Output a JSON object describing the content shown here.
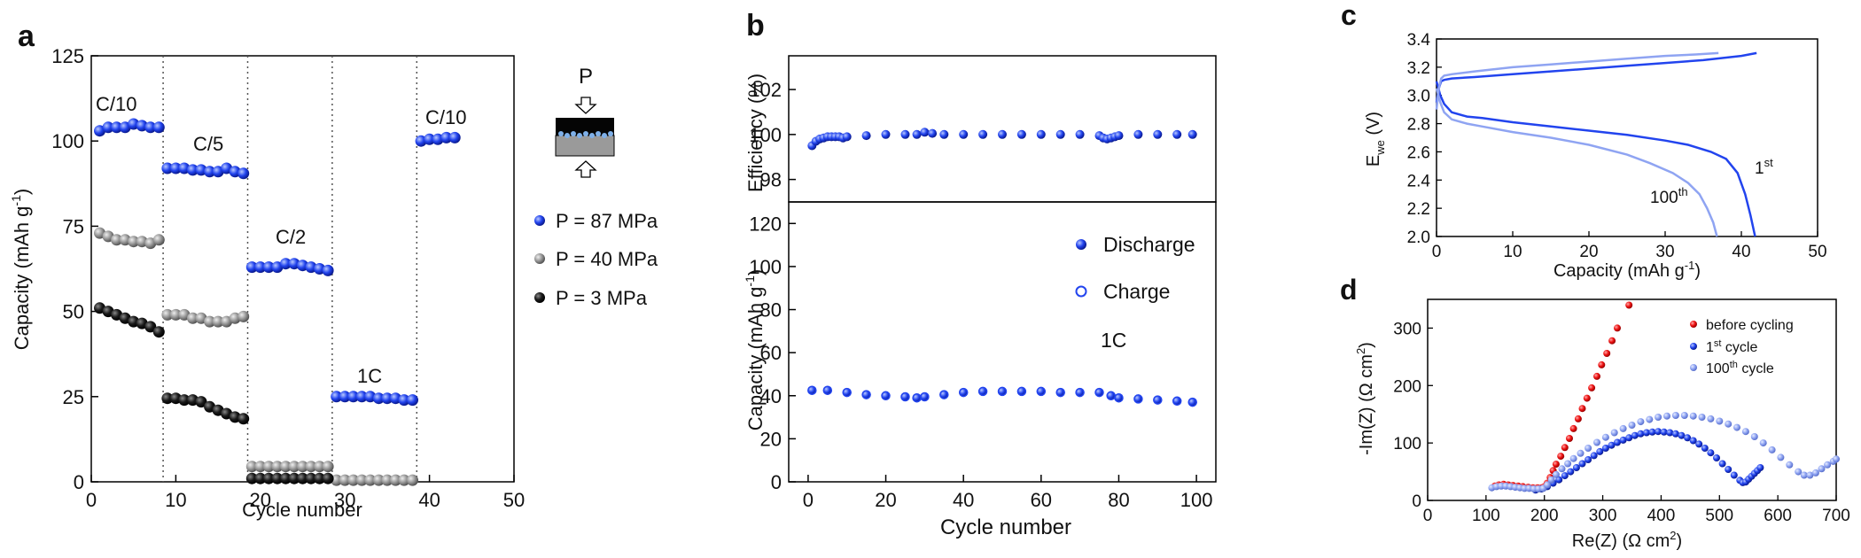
{
  "panels": {
    "a": {
      "letter": "a",
      "xlabel": "Cycle number",
      "ylabel": "Capacity (mAh g",
      "ylabel_sup": "-1",
      "ylabel_close": ")",
      "xlim": [
        0,
        50
      ],
      "ylim": [
        0,
        125
      ],
      "xticks": [
        "0",
        "10",
        "20",
        "30",
        "40",
        "50"
      ],
      "yticks": [
        "0",
        "25",
        "50",
        "75",
        "100",
        "125"
      ],
      "rate_labels": [
        "C/10",
        "C/5",
        "C/2",
        "1C",
        "C/10"
      ],
      "dividers": [
        8.5,
        18.5,
        28.5,
        38.5
      ],
      "inset_label": "P",
      "legend": [
        "P = 87 MPa",
        "P = 40 MPa",
        "P = 3 MPa"
      ]
    },
    "b": {
      "letter": "b",
      "top_ylabel": "Efficiency (%)",
      "top_ylim": [
        97,
        103.5
      ],
      "top_yticks": [
        "98",
        "100",
        "102"
      ],
      "bottom_ylabel": "Capacity (mAh g",
      "bottom_ylabel_sup": "-1",
      "bottom_ylabel_close": ")",
      "bottom_ylim": [
        0,
        130
      ],
      "bottom_yticks": [
        "0",
        "20",
        "40",
        "60",
        "80",
        "100",
        "120"
      ],
      "xlabel": "Cycle number",
      "xlim": [
        -5,
        105
      ],
      "xticks": [
        "0",
        "20",
        "40",
        "60",
        "80",
        "100"
      ],
      "legend": [
        "Discharge",
        "Charge"
      ],
      "rate_label": "1C"
    },
    "c": {
      "letter": "c",
      "ylabel_main": "E",
      "ylabel_sub": "we",
      "ylabel_unit": " (V)",
      "xlabel": "Capacity (mAh g",
      "xlabel_sup": "-1",
      "xlabel_close": ")",
      "xlim": [
        0,
        50
      ],
      "ylim": [
        2.0,
        3.4
      ],
      "xticks": [
        "0",
        "10",
        "20",
        "30",
        "40",
        "50"
      ],
      "yticks": [
        "2.0",
        "2.2",
        "2.4",
        "2.6",
        "2.8",
        "3.0",
        "3.2",
        "3.4"
      ],
      "label_1": "1",
      "label_1_sup": "st",
      "label_100": "100",
      "label_100_sup": "th"
    },
    "d": {
      "letter": "d",
      "xlabel": "Re(Z) (Ω cm",
      "xlabel_sup": "2",
      "xlabel_close": ")",
      "ylabel": "-Im(Z) (Ω cm",
      "ylabel_sup": "2",
      "ylabel_close": ")",
      "xlim": [
        0,
        700
      ],
      "ylim": [
        0,
        350
      ],
      "xticks": [
        "0",
        "100",
        "200",
        "300",
        "400",
        "500",
        "600",
        "700"
      ],
      "yticks": [
        "0",
        "100",
        "200",
        "300"
      ],
      "legend": [
        {
          "text": "before cycling",
          "sup": "",
          "rest": ""
        },
        {
          "text": "1",
          "sup": "st",
          "rest": " cycle"
        },
        {
          "text": "100",
          "sup": "th",
          "rest": " cycle"
        }
      ]
    }
  },
  "colors": {
    "blue": "#2244ee",
    "light_blue": "#8fa4f2",
    "gray": "#999999",
    "black": "#1a1a1a",
    "red": "#ee1111"
  },
  "chart_data": [
    {
      "type": "scatter",
      "panel": "a",
      "xlabel": "Cycle number",
      "ylabel": "Capacity (mAh g-1)",
      "xlim": [
        0,
        50
      ],
      "ylim": [
        0,
        125
      ],
      "series": [
        {
          "name": "P = 87 MPa",
          "color": "blue",
          "x": [
            1,
            2,
            3,
            4,
            5,
            6,
            7,
            8,
            9,
            10,
            11,
            12,
            13,
            14,
            15,
            16,
            17,
            18,
            19,
            20,
            21,
            22,
            23,
            24,
            25,
            26,
            27,
            28,
            29,
            30,
            31,
            32,
            33,
            34,
            35,
            36,
            37,
            38,
            39,
            40,
            41,
            42,
            43
          ],
          "y": [
            103,
            104,
            104,
            104,
            105,
            104.5,
            104,
            104,
            92,
            92,
            92,
            91.5,
            91.5,
            91,
            91,
            92,
            91,
            90.5,
            63,
            63,
            63,
            63,
            64,
            64,
            63.5,
            63,
            62.5,
            62,
            25,
            25,
            25,
            25,
            25,
            24.5,
            24.5,
            24.5,
            24,
            24,
            100,
            100.5,
            100.5,
            101,
            101
          ]
        },
        {
          "name": "P = 40 MPa",
          "color": "gray",
          "x": [
            1,
            2,
            3,
            4,
            5,
            6,
            7,
            8,
            9,
            10,
            11,
            12,
            13,
            14,
            15,
            16,
            17,
            18,
            19,
            20,
            21,
            22,
            23,
            24,
            25,
            26,
            27,
            28,
            29,
            30,
            31,
            32,
            33,
            34,
            35,
            36,
            37,
            38
          ],
          "y": [
            73,
            72,
            71,
            71,
            70.5,
            70.5,
            70,
            71,
            49,
            49,
            49,
            48,
            48,
            47,
            47,
            47,
            48,
            48.5,
            4.5,
            4.5,
            4.5,
            4.5,
            4.5,
            4.5,
            4.5,
            4.5,
            4.5,
            4.5,
            0.5,
            0.5,
            0.5,
            0.5,
            0.5,
            0.5,
            0.5,
            0.5,
            0.5,
            0.5
          ]
        },
        {
          "name": "P = 3 MPa",
          "color": "black",
          "x": [
            1,
            2,
            3,
            4,
            5,
            6,
            7,
            8,
            9,
            10,
            11,
            12,
            13,
            14,
            15,
            16,
            17,
            18,
            19,
            20,
            21,
            22,
            23,
            24,
            25,
            26,
            27,
            28
          ],
          "y": [
            51,
            50,
            49,
            48,
            47,
            46.5,
            45.5,
            44,
            24.5,
            24.5,
            24,
            24,
            23.5,
            22,
            21,
            20,
            19,
            18.5,
            1,
            1,
            1,
            1,
            1,
            1,
            1,
            1,
            1,
            1
          ]
        }
      ]
    },
    {
      "type": "scatter",
      "panel": "b-top",
      "ylabel": "Efficiency (%)",
      "ylim": [
        97,
        103.5
      ],
      "series": [
        {
          "name": "",
          "color": "blue",
          "x": [
            1,
            2,
            3,
            4,
            5,
            6,
            7,
            8,
            9,
            10,
            15,
            20,
            25,
            28,
            30,
            32,
            35,
            40,
            45,
            50,
            55,
            60,
            65,
            70,
            75,
            76,
            77,
            78,
            79,
            80,
            85,
            90,
            95,
            99
          ],
          "y": [
            99.5,
            99.7,
            99.8,
            99.85,
            99.9,
            99.9,
            99.9,
            99.9,
            99.85,
            99.9,
            99.95,
            100,
            100,
            100,
            100.1,
            100.05,
            100,
            100,
            100,
            100,
            100,
            100,
            100,
            100,
            99.95,
            99.85,
            99.8,
            99.85,
            99.9,
            99.95,
            100,
            100,
            100,
            100
          ]
        }
      ]
    },
    {
      "type": "scatter",
      "panel": "b-bottom",
      "xlabel": "Cycle number",
      "ylabel": "Capacity (mAh g-1)",
      "ylim": [
        0,
        130
      ],
      "series": [
        {
          "name": "Discharge",
          "color": "blue",
          "x": [
            1,
            5,
            10,
            15,
            20,
            25,
            28,
            30,
            35,
            40,
            45,
            50,
            55,
            60,
            65,
            70,
            75,
            78,
            80,
            85,
            90,
            95,
            99
          ],
          "y": [
            42.5,
            42.5,
            41.5,
            40.5,
            40,
            39.5,
            39,
            39.5,
            40.5,
            41.5,
            42,
            42,
            42,
            42,
            41.5,
            41.5,
            41.5,
            40,
            39,
            38.5,
            38,
            37.5,
            37
          ]
        },
        {
          "name": "Charge",
          "color": "blue",
          "x": [
            1,
            5,
            10,
            15,
            20,
            25,
            28,
            30,
            35,
            40,
            45,
            50,
            55,
            60,
            65,
            70,
            75,
            78,
            80,
            85,
            90,
            95,
            99
          ],
          "y": [
            42.5,
            42.5,
            41.5,
            40.5,
            40,
            39.5,
            39,
            39.5,
            40.5,
            41.5,
            42,
            42,
            42,
            42,
            41.5,
            41.5,
            41.5,
            40,
            39,
            38.5,
            38,
            37.5,
            37
          ]
        }
      ]
    },
    {
      "type": "line",
      "panel": "c",
      "xlabel": "Capacity (mAh g-1)",
      "ylabel": "Ewe (V)",
      "xlim": [
        0,
        50
      ],
      "ylim": [
        2.0,
        3.4
      ],
      "series": [
        {
          "name": "1st discharge",
          "color": "blue",
          "x": [
            0,
            0.5,
            1,
            2,
            4,
            6,
            10,
            15,
            20,
            25,
            30,
            33,
            36,
            38,
            39.5,
            40.5,
            41.2,
            41.8
          ],
          "y": [
            3.1,
            3.0,
            2.94,
            2.88,
            2.85,
            2.84,
            2.81,
            2.78,
            2.75,
            2.72,
            2.68,
            2.65,
            2.6,
            2.55,
            2.45,
            2.3,
            2.15,
            2.0
          ]
        },
        {
          "name": "1st charge",
          "color": "blue",
          "x": [
            0,
            0.3,
            0.6,
            1,
            2,
            5,
            10,
            15,
            20,
            25,
            30,
            35,
            40,
            42
          ],
          "y": [
            2.95,
            3.05,
            3.1,
            3.11,
            3.12,
            3.13,
            3.15,
            3.17,
            3.19,
            3.21,
            3.23,
            3.25,
            3.28,
            3.3
          ]
        },
        {
          "name": "100th discharge",
          "color": "light_blue",
          "x": [
            0,
            0.5,
            1,
            2,
            4,
            6,
            10,
            15,
            20,
            25,
            28,
            31,
            33,
            34.5,
            35.5,
            36.3,
            36.8
          ],
          "y": [
            3.05,
            2.95,
            2.88,
            2.83,
            2.8,
            2.78,
            2.74,
            2.7,
            2.65,
            2.58,
            2.52,
            2.45,
            2.38,
            2.3,
            2.2,
            2.1,
            2.0
          ]
        },
        {
          "name": "100th charge",
          "color": "light_blue",
          "x": [
            0,
            0.3,
            0.6,
            1,
            2,
            5,
            10,
            15,
            20,
            25,
            30,
            34,
            37
          ],
          "y": [
            2.9,
            3.05,
            3.12,
            3.14,
            3.15,
            3.17,
            3.2,
            3.22,
            3.24,
            3.26,
            3.28,
            3.29,
            3.3
          ]
        }
      ]
    },
    {
      "type": "scatter",
      "panel": "d",
      "xlabel": "Re(Z) (Ω cm2)",
      "ylabel": "-Im(Z) (Ω cm2)",
      "xlim": [
        0,
        700
      ],
      "ylim": [
        0,
        350
      ],
      "series": [
        {
          "name": "before cycling",
          "color": "red",
          "x": [
            115,
            122,
            130,
            138,
            146,
            155,
            163,
            172,
            180,
            188,
            195,
            200,
            205,
            210,
            215,
            220,
            228,
            235,
            243,
            250,
            258,
            265,
            273,
            281,
            290,
            298,
            307,
            316,
            325,
            345
          ],
          "y": [
            25,
            27,
            28,
            27,
            26,
            25,
            24,
            23,
            22,
            22,
            22,
            24,
            30,
            40,
            52,
            63,
            77,
            92,
            108,
            125,
            142,
            160,
            178,
            196,
            216,
            236,
            256,
            278,
            300,
            340
          ]
        },
        {
          "name": "1st cycle",
          "color": "blue",
          "x": [
            185,
            195,
            205,
            215,
            225,
            235,
            245,
            255,
            265,
            275,
            285,
            295,
            305,
            315,
            325,
            335,
            345,
            355,
            365,
            375,
            385,
            395,
            405,
            415,
            425,
            435,
            445,
            455,
            465,
            475,
            485,
            495,
            505,
            515,
            525,
            535,
            540,
            545,
            550,
            555,
            560,
            565,
            570
          ],
          "y": [
            18,
            20,
            24,
            30,
            36,
            43,
            50,
            57,
            64,
            71,
            78,
            85,
            91,
            96,
            101,
            105,
            109,
            113,
            116,
            118,
            119,
            120,
            119,
            118,
            116,
            113,
            109,
            104,
            98,
            91,
            83,
            74,
            64,
            54,
            44,
            35,
            31,
            32,
            37,
            42,
            47,
            52,
            57
          ]
        },
        {
          "name": "100th cycle",
          "color": "light_blue",
          "x": [
            110,
            118,
            126,
            134,
            142,
            150,
            158,
            166,
            174,
            182,
            190,
            198,
            205,
            212,
            220,
            230,
            240,
            250,
            262,
            275,
            290,
            305,
            320,
            335,
            350,
            365,
            380,
            395,
            410,
            425,
            440,
            455,
            470,
            485,
            500,
            515,
            530,
            545,
            560,
            575,
            590,
            605,
            620,
            635,
            645,
            655,
            665,
            675,
            685,
            695,
            700
          ],
          "y": [
            22,
            24,
            25,
            25,
            24,
            23,
            22,
            21,
            21,
            20,
            20,
            21,
            27,
            36,
            45,
            55,
            64,
            73,
            82,
            91,
            101,
            110,
            118,
            125,
            131,
            137,
            141,
            145,
            147,
            148,
            148,
            147,
            145,
            142,
            138,
            133,
            127,
            120,
            111,
            100,
            88,
            75,
            62,
            50,
            44,
            44,
            48,
            55,
            62,
            68,
            72
          ]
        }
      ]
    }
  ]
}
